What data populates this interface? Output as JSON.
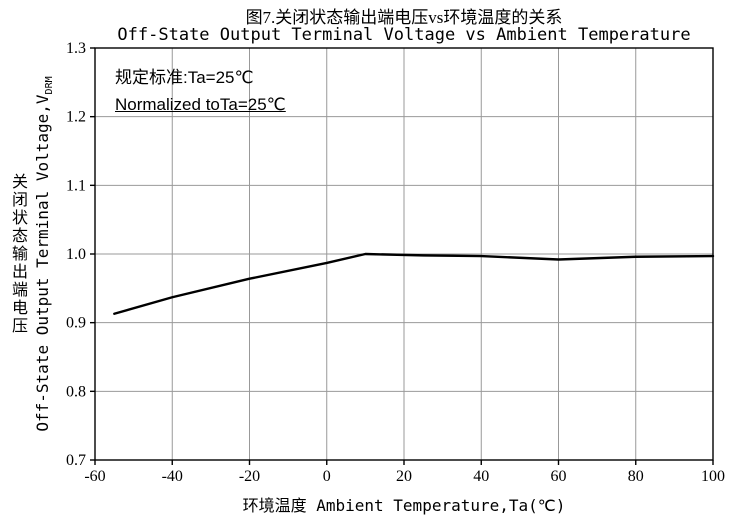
{
  "figure": {
    "title_cn": "图7.关闭状态输出端电压vs环境温度的关系",
    "title_en": "Off-State Output Terminal Voltage vs Ambient Temperature",
    "annotation": {
      "line1": "规定标准:Ta=25℃",
      "line2": "Normalized toTa=25℃"
    },
    "x_axis_label": "环境温度 Ambient Temperature,Ta(℃)",
    "y_axis_label_cn": "关闭状态输出端电压",
    "y_axis_label_en": "Off-State Output Terminal Voltage,V",
    "y_axis_label_sub": "DRM"
  },
  "chart_data": {
    "type": "line",
    "title": "Off-State Output Terminal Voltage vs Ambient Temperature",
    "xlabel": "环境温度 Ambient Temperature,Ta(℃)",
    "ylabel": "Off-State Output Terminal Voltage, VDRM (normalized to Ta=25℃)",
    "x": [
      -55,
      -40,
      -20,
      0,
      10,
      25,
      40,
      60,
      80,
      100
    ],
    "y": [
      0.913,
      0.937,
      0.964,
      0.987,
      1.0,
      0.998,
      0.997,
      0.992,
      0.996,
      0.997
    ],
    "xlim": [
      -60,
      100
    ],
    "ylim": [
      0.7,
      1.3
    ],
    "x_ticks": [
      -60,
      -40,
      -20,
      0,
      20,
      40,
      60,
      80,
      100
    ],
    "y_ticks": [
      0.7,
      0.8,
      0.9,
      1.0,
      1.1,
      1.2,
      1.3
    ],
    "grid": true,
    "legend": "none",
    "line_color": "#000000",
    "grid_color": "#999999",
    "axis_color": "#000000"
  }
}
